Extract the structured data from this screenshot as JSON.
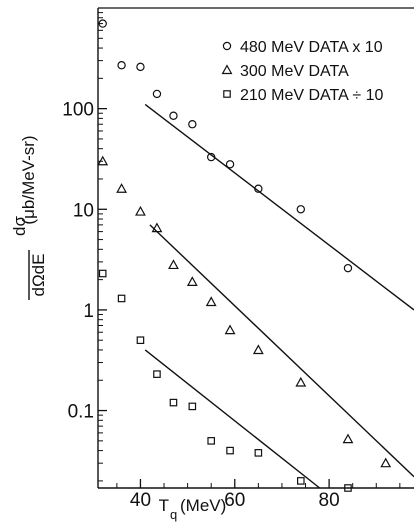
{
  "chart_data": {
    "type": "scatter",
    "title": "",
    "xlabel": "T_q (MeV)",
    "ylabel": "dσ/dΩdE (μb/MeV-sr)",
    "xaxis": {
      "label_main": "T",
      "label_sub": "q",
      "label_unit": "(MeV)",
      "range": [
        31,
        98
      ],
      "ticks": [
        40,
        60,
        80
      ],
      "tick_labels": [
        "40",
        "60",
        "80"
      ]
    },
    "yaxis": {
      "label_fraction_top": "dσ",
      "label_fraction_bottom": "dΩdE",
      "label_unit": "(μb/MeV-sr)",
      "scale": "log",
      "range": [
        0.017,
        1000
      ],
      "ticks": [
        0.1,
        1,
        10,
        100
      ],
      "tick_labels": [
        "0.1",
        "1",
        "10",
        "100"
      ]
    },
    "legend": {
      "position": "top-right",
      "entries": [
        {
          "marker": "circle",
          "label": "480 MeV DATA x 10"
        },
        {
          "marker": "triangle",
          "label": "300 MeV DATA"
        },
        {
          "marker": "square",
          "label": "210 MeV DATA ÷ 10"
        }
      ]
    },
    "series": [
      {
        "marker": "circle",
        "points": [
          {
            "x": 32,
            "y": 700
          },
          {
            "x": 36,
            "y": 270
          },
          {
            "x": 40,
            "y": 260
          },
          {
            "x": 43.5,
            "y": 140
          },
          {
            "x": 47,
            "y": 85
          },
          {
            "x": 51,
            "y": 70
          },
          {
            "x": 55,
            "y": 33
          },
          {
            "x": 59,
            "y": 28
          },
          {
            "x": 65,
            "y": 16
          },
          {
            "x": 74,
            "y": 10
          },
          {
            "x": 84,
            "y": 2.6
          }
        ],
        "fit_line": [
          {
            "x": 41,
            "y": 110
          },
          {
            "x": 98,
            "y": 1.0
          }
        ]
      },
      {
        "marker": "triangle",
        "points": [
          {
            "x": 32,
            "y": 30
          },
          {
            "x": 36,
            "y": 16
          },
          {
            "x": 40,
            "y": 9.5
          },
          {
            "x": 43.5,
            "y": 6.5
          },
          {
            "x": 47,
            "y": 2.8
          },
          {
            "x": 51,
            "y": 1.9
          },
          {
            "x": 55,
            "y": 1.2
          },
          {
            "x": 59,
            "y": 0.63
          },
          {
            "x": 65,
            "y": 0.4
          },
          {
            "x": 74,
            "y": 0.19
          },
          {
            "x": 84,
            "y": 0.052
          },
          {
            "x": 92,
            "y": 0.03
          }
        ],
        "fit_line": [
          {
            "x": 42,
            "y": 7
          },
          {
            "x": 98,
            "y": 0.022
          }
        ]
      },
      {
        "marker": "square",
        "points": [
          {
            "x": 32,
            "y": 2.3
          },
          {
            "x": 36,
            "y": 1.3
          },
          {
            "x": 40,
            "y": 0.5
          },
          {
            "x": 43.5,
            "y": 0.23
          },
          {
            "x": 47,
            "y": 0.12
          },
          {
            "x": 51,
            "y": 0.11
          },
          {
            "x": 55,
            "y": 0.05
          },
          {
            "x": 59,
            "y": 0.04
          },
          {
            "x": 65,
            "y": 0.038
          },
          {
            "x": 74,
            "y": 0.02
          },
          {
            "x": 84,
            "y": 0.017
          }
        ],
        "fit_line": [
          {
            "x": 41,
            "y": 0.4
          },
          {
            "x": 78,
            "y": 0.017
          }
        ]
      }
    ]
  }
}
